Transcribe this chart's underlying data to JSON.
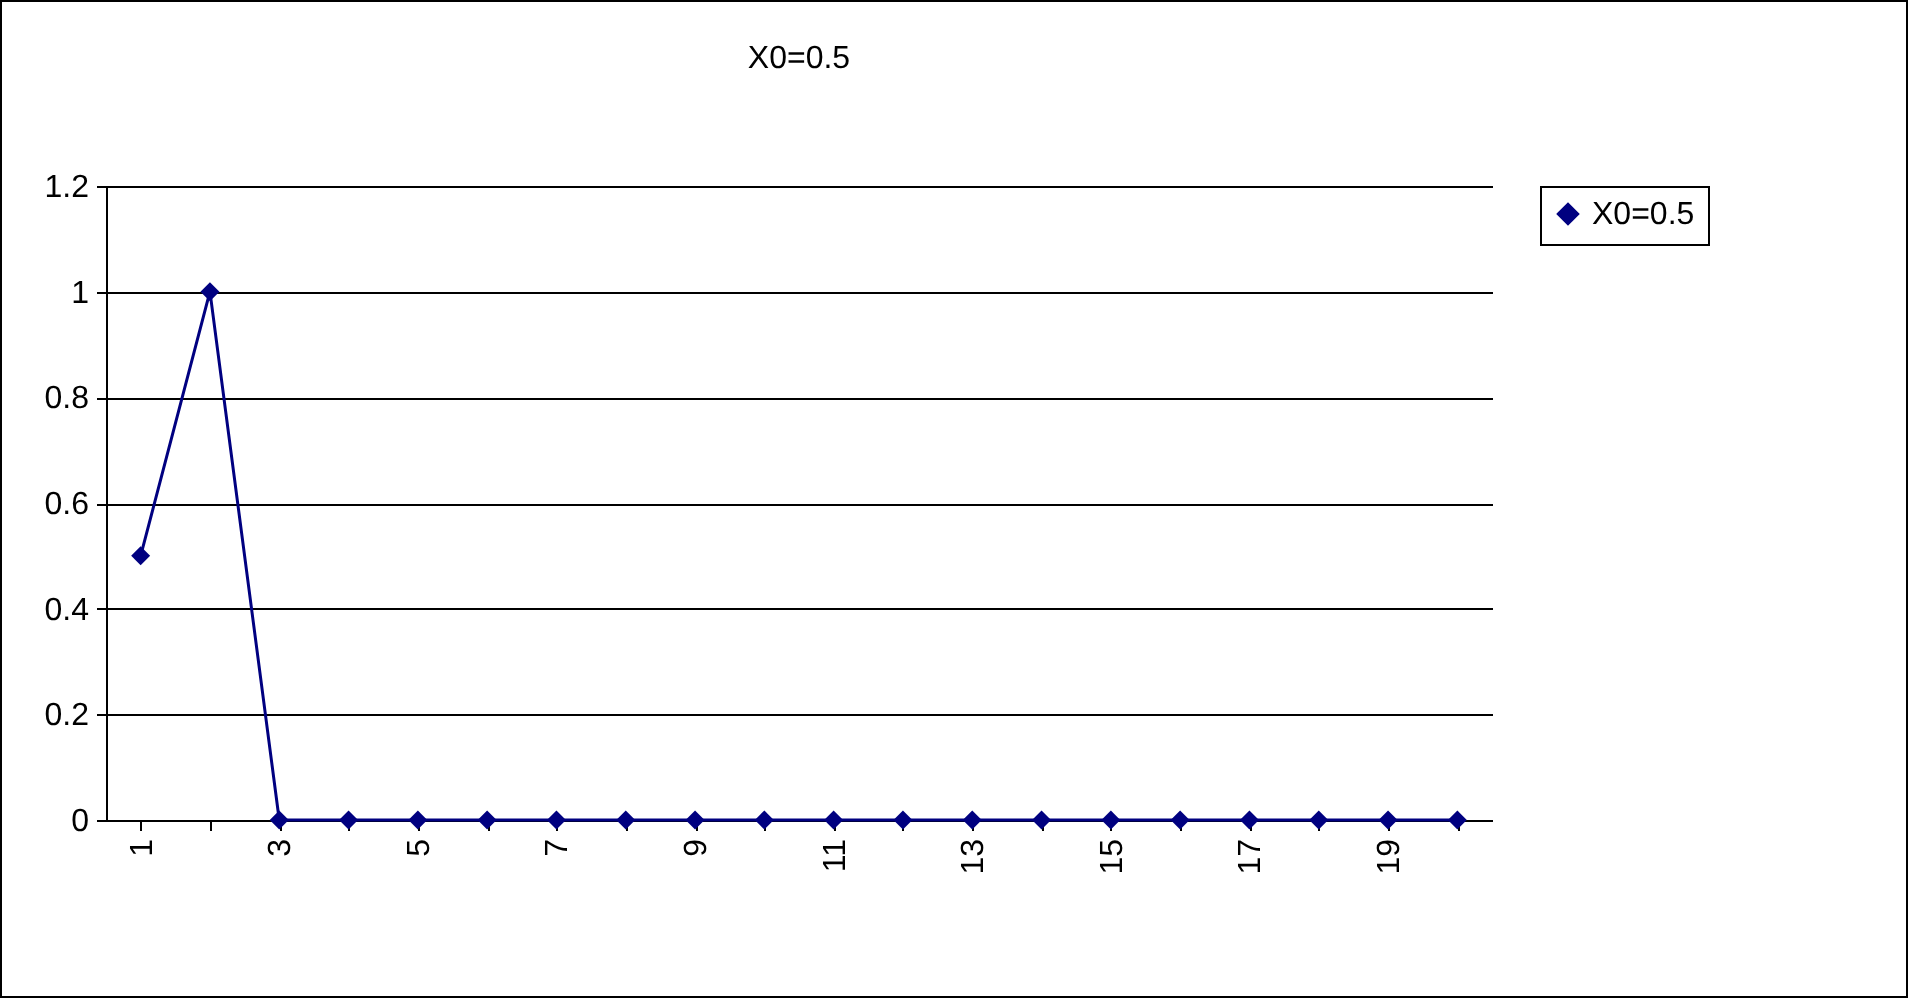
{
  "chart_data": {
    "type": "line",
    "title": "X0=0.5",
    "categories": [
      "1",
      null,
      "3",
      null,
      "5",
      null,
      "7",
      null,
      "9",
      null,
      "11",
      null,
      "13",
      null,
      "15",
      null,
      "17",
      null,
      "19",
      null
    ],
    "series": [
      {
        "name": "X0=0.5",
        "color": "#000080",
        "values": [
          0.5,
          1,
          0,
          0,
          0,
          0,
          0,
          0,
          0,
          0,
          0,
          0,
          0,
          0,
          0,
          0,
          0,
          0,
          0,
          0
        ]
      }
    ],
    "ylim": [
      0,
      1.2
    ],
    "yticks": [
      0,
      0.2,
      0.4,
      0.6,
      0.8,
      1,
      1.2
    ],
    "grid": "y",
    "legend": "right",
    "marker": "diamond",
    "line_style": "solid"
  }
}
